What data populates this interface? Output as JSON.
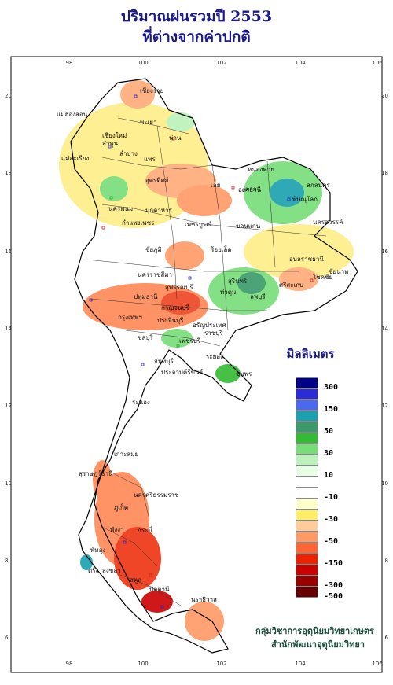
{
  "title": {
    "line1": "ปริมาณฝนรวมปี  2553",
    "line2": "ที่ต่างจากค่าปกติ"
  },
  "axes": {
    "lon_ticks": [
      "98",
      "100",
      "102",
      "104",
      "106"
    ],
    "lat_ticks": [
      "20",
      "18",
      "16",
      "14",
      "12",
      "10",
      "8",
      "6"
    ]
  },
  "places": [
    "เชียงราย",
    "แม่ฮ่องสอน",
    "พะเยา",
    "เชียงใหม่",
    "ลำพูน",
    "น่าน",
    "ลำปาง",
    "แพร่",
    "แม่สะเรียง",
    "อุตรดิตถ์",
    "หนองคาย",
    "ตาก",
    "พิษณุโลก",
    "เลย",
    "อุดรธานี",
    "สกลนคร",
    "นครพนม",
    "มุกดาหาร",
    "กำแพงเพชร",
    "เพชรบูรณ์",
    "ขอนแก่น",
    "นครสวรรค์",
    "ชัยภูมิ",
    "ร้อยเอ็ด",
    "อุบลราชธานี",
    "ชัยนาท",
    "นครราชสีมา",
    "สุรินทร์",
    "ศรีสะเกษ",
    "โชคชัย",
    "ท่าตูม",
    "ลพบุรี",
    "สุพรรณบุรี",
    "ปทุมธานี",
    "กาญจนบุรี",
    "กรุงเทพฯ",
    "ปราจีนบุรี",
    "อรัญประเทศ",
    "ราชบุรี",
    "ชลบุรี",
    "เพชรบุรี",
    "ระยอง",
    "จันทบุรี",
    "ประจวบคีรีขันธ์",
    "ชุมพร",
    "ระนอง",
    "เกาะสมุย",
    "สุราษฎร์ธานี",
    "นครศรีธรรมราช",
    "ภูเก็ต",
    "พังงา",
    "กระบี่",
    "ตรัง",
    "พัทลุง",
    "สงขลา",
    "สตูล",
    "ปัตตานี",
    "นราธิวาส"
  ],
  "legend": {
    "title": "มิลลิเมตร",
    "levels": [
      "300",
      "150",
      "50",
      "30",
      "10",
      "-10",
      "-30",
      "-50",
      "-150",
      "-300",
      "-500"
    ],
    "colors": [
      "#00008b",
      "#2b2bd8",
      "#4a68f0",
      "#1aa0b0",
      "#3a9a6a",
      "#33bb33",
      "#77dd77",
      "#bbf2bb",
      "#e6ffe6",
      "#ffffff",
      "#ffffff",
      "#ffffcc",
      "#ffee66",
      "#ffcc99",
      "#ff9966",
      "#ff6633",
      "#ee2200",
      "#cc0000",
      "#990000",
      "#660000"
    ]
  },
  "credit": {
    "line1": "กลุ่มวิชาการอุตุนิยมวิทยาเกษตร",
    "line2": "สำนักพัฒนาอุตุนิยมวิทยา"
  }
}
